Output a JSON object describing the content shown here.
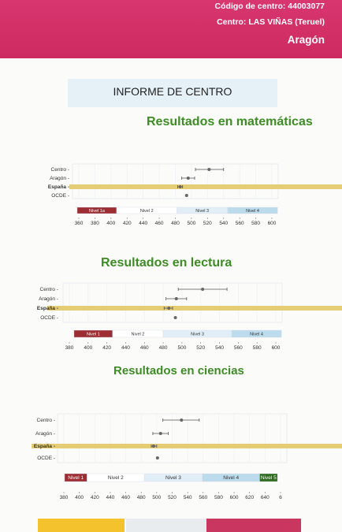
{
  "header": {
    "code_line": "Código de centro: 44003077",
    "center_line": "Centro: LAS VIÑAS (Teruel)",
    "region": "Aragón"
  },
  "report_title": "INFORME DE CENTRO",
  "colors": {
    "banner": "#cc2a60",
    "title_green": "#3d8c25",
    "spain_band": "#e4cd74",
    "point": "#666666",
    "grid": "#e6eaf0"
  },
  "chart_data": [
    {
      "type": "scatter",
      "title": "Resultados en matemáticas",
      "categories": [
        "Centro",
        "Aragón",
        "España",
        "OCDE"
      ],
      "values": [
        522,
        496,
        486,
        494
      ],
      "error_low": [
        505,
        488,
        483,
        null
      ],
      "error_high": [
        540,
        504,
        489,
        null
      ],
      "xlim": [
        360,
        600
      ],
      "xticks": [
        360,
        380,
        400,
        420,
        440,
        460,
        480,
        500,
        520,
        540,
        560,
        580,
        600
      ],
      "levels": [
        {
          "label": "Nivel 1a",
          "from": 358,
          "to": 407,
          "color": "#9c2e33"
        },
        {
          "label": "Nivel 2",
          "from": 407,
          "to": 482,
          "color": "#ffffff"
        },
        {
          "label": "Nivel 3",
          "from": 482,
          "to": 545,
          "color": "#e1eef7"
        },
        {
          "label": "Nivel 4",
          "from": 545,
          "to": 607,
          "color": "#bcdced"
        }
      ],
      "grid": true
    },
    {
      "type": "scatter",
      "title": "Resultados en lectura",
      "categories": [
        "Centro",
        "Aragón",
        "España",
        "OCDE"
      ],
      "values": [
        522,
        494,
        486,
        493
      ],
      "error_low": [
        496,
        483,
        481,
        null
      ],
      "error_high": [
        548,
        505,
        490,
        null
      ],
      "xlim": [
        380,
        600
      ],
      "xticks": [
        380,
        400,
        420,
        440,
        460,
        480,
        500,
        520,
        540,
        560,
        580,
        600
      ],
      "levels": [
        {
          "label": "Nivel 1",
          "from": 385,
          "to": 426,
          "color": "#9c2e33"
        },
        {
          "label": "Nivel 2",
          "from": 426,
          "to": 480,
          "color": "#ffffff"
        },
        {
          "label": "Nivel 3",
          "from": 480,
          "to": 553,
          "color": "#e1eef7"
        },
        {
          "label": "Nivel 4",
          "from": 553,
          "to": 606,
          "color": "#bcdced"
        }
      ],
      "grid": true
    },
    {
      "type": "scatter",
      "title": "Resultados en ciencias",
      "categories": [
        "Centro",
        "Aragón",
        "España",
        "OCDE"
      ],
      "values": [
        532,
        505,
        496,
        501
      ],
      "error_low": [
        508,
        495,
        493,
        null
      ],
      "error_high": [
        555,
        515,
        500,
        null
      ],
      "xlim": [
        380,
        650
      ],
      "xticks": [
        "380",
        "400",
        "420",
        "440",
        "460",
        "480",
        "500",
        "520",
        "540",
        "560",
        "580",
        "600",
        "620",
        "640",
        "6"
      ],
      "levels": [
        {
          "label": "Nivel 1",
          "from": 381,
          "to": 410,
          "color": "#9c2e33"
        },
        {
          "label": "Nivel 2",
          "from": 410,
          "to": 484,
          "color": "#ffffff"
        },
        {
          "label": "Nivel 3",
          "from": 484,
          "to": 559,
          "color": "#e1eef7"
        },
        {
          "label": "Nivel 4",
          "from": 559,
          "to": 633,
          "color": "#bcdced"
        },
        {
          "label": "Nivel 5",
          "from": 633,
          "to": 656,
          "color": "#2e6b1f"
        }
      ],
      "grid": true
    }
  ]
}
